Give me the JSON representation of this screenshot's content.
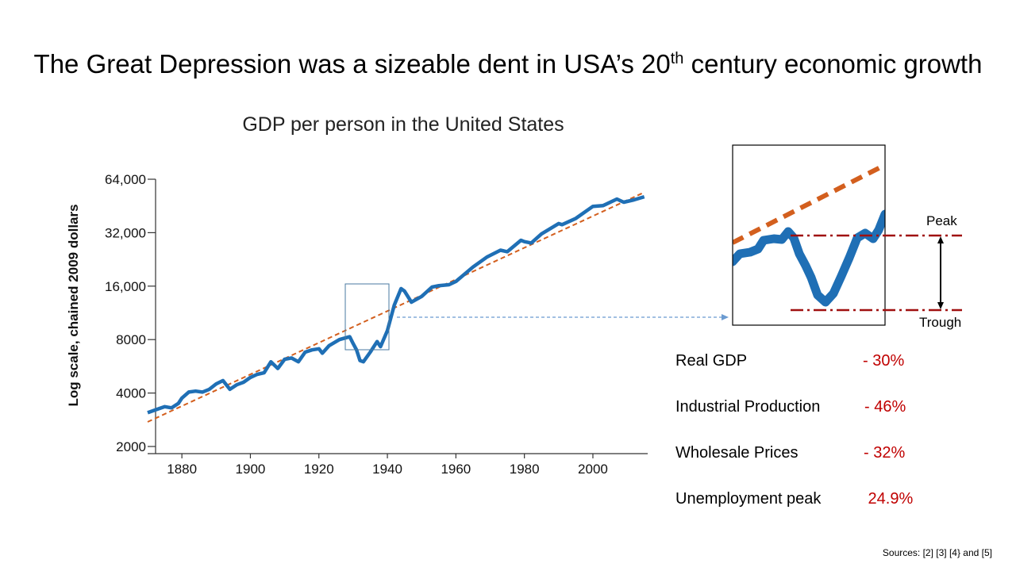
{
  "title": {
    "main": "The Great Depression was a sizeable dent in USA’s 20",
    "superscript": "th",
    "tail": " century economic growth"
  },
  "chart_data": {
    "type": "line",
    "title": "GDP per person in the United States",
    "ylabel": "Log scale, chained 2009 dollars",
    "xlabel": "",
    "yscale": "log",
    "xlim": [
      1870,
      2016
    ],
    "ylim": [
      1800,
      64000
    ],
    "xticks": [
      1880,
      1900,
      1920,
      1940,
      1960,
      1980,
      2000
    ],
    "yticks": [
      64000,
      32000,
      16000,
      8000,
      4000,
      2000
    ],
    "ytick_labels": [
      "64,000",
      "32,000",
      "16,000",
      "8000",
      "4000",
      "2000"
    ],
    "series": [
      {
        "color": "#1f6fb5",
        "style": "solid",
        "x": [
          1870,
          1873,
          1875,
          1877,
          1879,
          1880,
          1882,
          1884,
          1886,
          1888,
          1890,
          1892,
          1894,
          1896,
          1898,
          1900,
          1902,
          1904,
          1906,
          1908,
          1910,
          1912,
          1914,
          1916,
          1918,
          1920,
          1921,
          1923,
          1926,
          1929,
          1930,
          1931,
          1932,
          1933,
          1935,
          1937,
          1938,
          1940,
          1942,
          1944,
          1945,
          1947,
          1950,
          1953,
          1955,
          1958,
          1960,
          1965,
          1969,
          1973,
          1975,
          1979,
          1980,
          1982,
          1985,
          1990,
          1991,
          1995,
          2000,
          2003,
          2007,
          2009,
          2012,
          2015
        ],
        "y": [
          3100,
          3250,
          3350,
          3300,
          3500,
          3750,
          4050,
          4100,
          4050,
          4200,
          4500,
          4700,
          4200,
          4450,
          4600,
          4900,
          5100,
          5200,
          6000,
          5500,
          6200,
          6300,
          6000,
          6800,
          7000,
          7100,
          6700,
          7400,
          8000,
          8300,
          7600,
          7000,
          6100,
          6000,
          6800,
          7800,
          7300,
          9000,
          12500,
          15500,
          15000,
          13000,
          14000,
          15800,
          16100,
          16300,
          17000,
          20500,
          23300,
          25500,
          25000,
          29000,
          28500,
          28000,
          31500,
          36000,
          35500,
          38500,
          45000,
          45500,
          49500,
          47500,
          49000,
          51000
        ]
      },
      {
        "color": "#d35f1e",
        "style": "dashed",
        "x": [
          1870,
          2015
        ],
        "y": [
          2750,
          54000
        ]
      }
    ]
  },
  "inset": {
    "peak_label": "Peak",
    "trough_label": "Trough"
  },
  "stats": [
    {
      "label": "Real GDP",
      "value": "- 30%"
    },
    {
      "label": "Industrial Production",
      "value": "- 46%"
    },
    {
      "label": "Wholesale Prices",
      "value": "- 32%"
    },
    {
      "label": "Unemployment peak",
      "value": " 24.9%"
    }
  ],
  "sources": "Sources: [2] [3] [4} and [5]",
  "colors": {
    "series": "#1f6fb5",
    "trend": "#d35f1e",
    "marker": "#c00000",
    "peak_trough_line": "#a01010"
  }
}
